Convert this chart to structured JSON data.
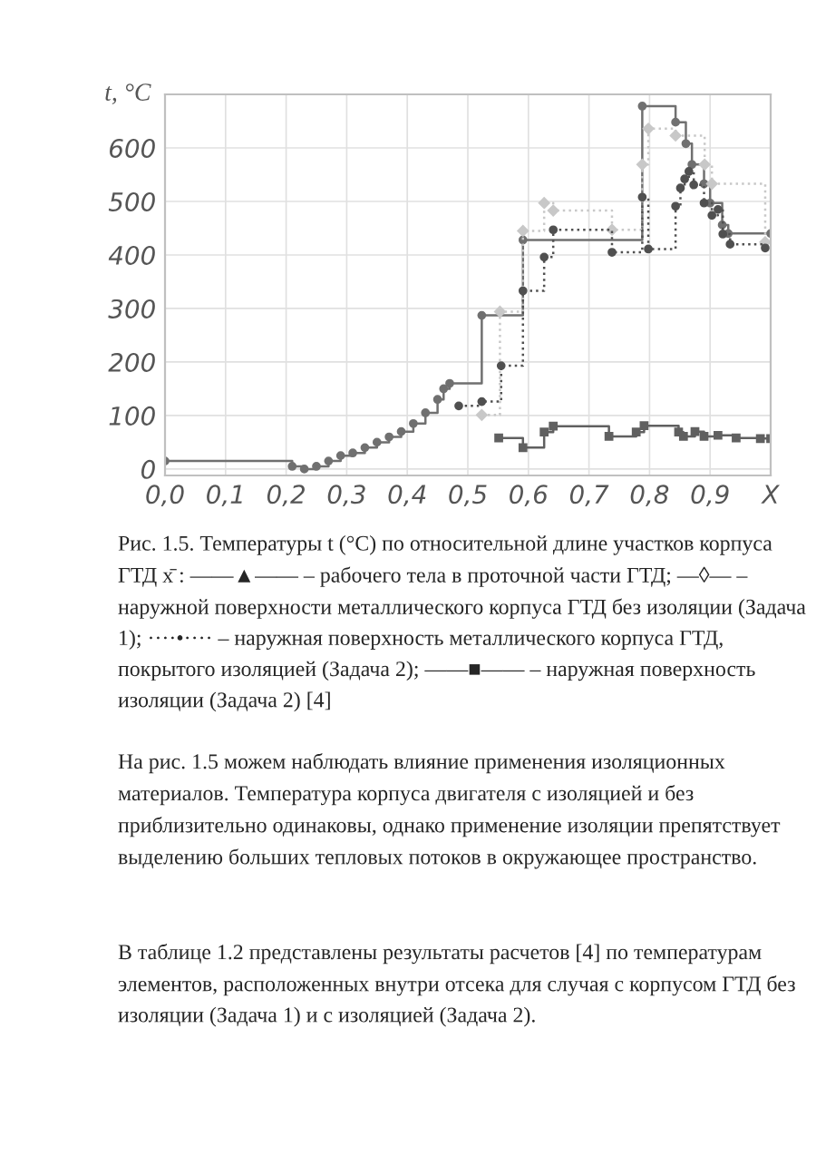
{
  "chart_data": {
    "type": "step",
    "ylabel": "t, °C",
    "xlim": [
      0,
      1.0
    ],
    "ylim": [
      -12,
      700
    ],
    "xticks": [
      {
        "value": 0.0,
        "label": "0,0"
      },
      {
        "value": 0.1,
        "label": "0,1"
      },
      {
        "value": 0.2,
        "label": "0,2"
      },
      {
        "value": 0.3,
        "label": "0,3"
      },
      {
        "value": 0.4,
        "label": "0,4"
      },
      {
        "value": 0.5,
        "label": "0,5"
      },
      {
        "value": 0.6,
        "label": "0,6"
      },
      {
        "value": 0.7,
        "label": "0,7"
      },
      {
        "value": 0.8,
        "label": "0,8"
      },
      {
        "value": 0.9,
        "label": "0,9"
      },
      {
        "value": 1.0,
        "label": "X"
      }
    ],
    "yticks": [
      0,
      100,
      200,
      300,
      400,
      500,
      600
    ],
    "grid": true,
    "series": [
      {
        "color": "#707070",
        "line_style": "solid",
        "marker": "circle",
        "x": [
          0,
          0.21,
          0.23,
          0.25,
          0.27,
          0.29,
          0.31,
          0.33,
          0.35,
          0.37,
          0.39,
          0.41,
          0.43,
          0.45,
          0.46,
          0.47,
          0.523,
          0.591,
          0.788,
          0.843,
          0.86,
          0.87,
          0.89,
          0.9,
          0.92,
          0.93,
          1.0
        ],
        "values": [
          15,
          5,
          0,
          5,
          15,
          25,
          30,
          40,
          50,
          60,
          70,
          85,
          105,
          130,
          150,
          160,
          287,
          428,
          678,
          648,
          608,
          569,
          533,
          497,
          456,
          440,
          440
        ]
      },
      {
        "color": "#c8c8c8",
        "line_style": "dotted",
        "marker": "diamond",
        "x": [
          0.523,
          0.553,
          0.591,
          0.626,
          0.641,
          0.738,
          0.788,
          0.798,
          0.843,
          0.891,
          0.903,
          0.991
        ],
        "values": [
          101,
          294,
          445,
          497,
          483,
          447,
          569,
          636,
          623,
          569,
          533,
          424
        ]
      },
      {
        "color": "#505050",
        "line_style": "dotted",
        "marker": "circle",
        "x": [
          0.485,
          0.523,
          0.555,
          0.591,
          0.626,
          0.641,
          0.738,
          0.788,
          0.798,
          0.843,
          0.851,
          0.858,
          0.865,
          0.873,
          0.89,
          0.903,
          0.913,
          0.921,
          0.933,
          0.991
        ],
        "values": [
          118,
          126,
          193,
          333,
          396,
          447,
          405,
          508,
          411,
          491,
          525,
          542,
          556,
          531,
          497,
          474,
          485,
          439,
          420,
          413
        ]
      },
      {
        "color": "#606060",
        "line_style": "solid",
        "marker": "square",
        "x": [
          0.551,
          0.591,
          0.626,
          0.641,
          0.733,
          0.778,
          0.791,
          0.848,
          0.856,
          0.875,
          0.89,
          0.913,
          0.943,
          0.983,
          1.0
        ],
        "values": [
          58,
          40,
          69,
          80,
          61,
          69,
          81,
          69,
          61,
          70,
          61,
          63,
          58,
          57,
          57
        ]
      }
    ],
    "annotations": [
      "Рис. 1.5. Температуры t (°С) по относительной длине участков корпуса ГТД x̄ : ——▲—— – рабочего тела в проточной части ГТД; —◊— – наружной поверхности металлического корпуса ГТД без изоляции (Задача 1); ····•···· – наружная поверхность металлического корпуса ГТД, покрытого изоляцией (Задача 2); ——■—— – наружная поверхность изоляции (Задача 2) [4]",
      "На рис. 1.5 можем наблюдать влияние применения изоляционных материалов. Температура корпуса двигателя с изоляцией и без приблизительно одинаковы, однако применение изоляции препятствует выделению больших тепловых потоков в окружающее пространство.",
      "В таблице 1.2 представлены результаты расчетов [4] по температурам элементов, расположенных внутри отсека для случая с корпусом ГТД без изоляции (Задача 1) и с изоляцией (Задача 2)."
    ]
  }
}
